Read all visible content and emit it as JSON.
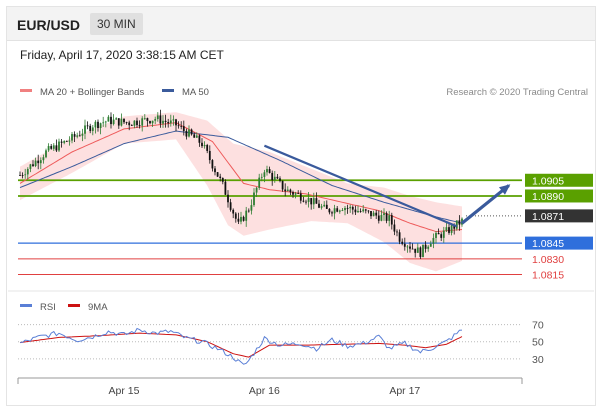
{
  "header": {
    "symbol": "EUR/USD",
    "timeframe": "30 MIN"
  },
  "timestamp": "Friday, April 17, 2020 3:38:15 AM CET",
  "colors": {
    "candle_up": "#2e7d32",
    "candle_down": "#111111",
    "ma20": "#ee5a5a",
    "bollinger_fill": "#fcd6d6",
    "ma50": "#3b5b9c",
    "resistance": "#5aa000",
    "pivot": "#2f6fdc",
    "support": "#e04040",
    "trend": "#3a5a9c",
    "rsi": "#5a7fd6",
    "rsi_ma": "#cc1111"
  },
  "chart_data": [
    {
      "type": "candlestick",
      "title": "EUR/USD",
      "legend": [
        {
          "name": "MA 20 + Bollinger Bands",
          "color": "#f08080"
        },
        {
          "name": "MA 50",
          "color": "#3b5b9c"
        }
      ],
      "legend_position": "top-left",
      "watermark": "Research © 2020 Trading Central",
      "x_tick_labels": [
        "Apr 15",
        "Apr 16",
        "Apr 17"
      ],
      "x_tick_index": [
        40,
        94,
        148
      ],
      "ylim": [
        1.0805,
        1.0995
      ],
      "last_price": 1.0871,
      "price_levels": [
        {
          "value": 1.0905,
          "label": "1.0905",
          "kind": "resistance"
        },
        {
          "value": 1.089,
          "label": "1.0890",
          "kind": "resistance"
        },
        {
          "value": 1.0871,
          "label": "1.0871",
          "kind": "last"
        },
        {
          "value": 1.0845,
          "label": "1.0845",
          "kind": "pivot"
        },
        {
          "value": 1.083,
          "label": "1.0830",
          "kind": "support"
        },
        {
          "value": 1.0815,
          "label": "1.0815",
          "kind": "support"
        }
      ],
      "trendline": {
        "from": {
          "index": 94,
          "price": 1.0938
        },
        "to": {
          "index": 168,
          "price": 1.0861
        }
      },
      "forecast_arrow": {
        "from": {
          "index": 170,
          "price": 1.0864
        },
        "to": {
          "index": 188,
          "price": 1.09
        }
      },
      "close_points": [
        [
          0,
          1.091
        ],
        [
          10,
          1.0932
        ],
        [
          20,
          1.0945
        ],
        [
          28,
          1.0958
        ],
        [
          34,
          1.0962
        ],
        [
          42,
          1.096
        ],
        [
          52,
          1.0964
        ],
        [
          60,
          1.0958
        ],
        [
          70,
          1.094
        ],
        [
          78,
          1.09
        ],
        [
          84,
          1.0862
        ],
        [
          88,
          1.0878
        ],
        [
          94,
          1.0916
        ],
        [
          102,
          1.0896
        ],
        [
          110,
          1.0888
        ],
        [
          118,
          1.0876
        ],
        [
          124,
          1.088
        ],
        [
          130,
          1.0876
        ],
        [
          136,
          1.0872
        ],
        [
          142,
          1.0868
        ],
        [
          146,
          1.085
        ],
        [
          150,
          1.0842
        ],
        [
          154,
          1.0836
        ],
        [
          158,
          1.0848
        ],
        [
          164,
          1.0856
        ],
        [
          170,
          1.0866
        ]
      ],
      "ma20_points": [
        [
          0,
          1.0902
        ],
        [
          20,
          1.0932
        ],
        [
          40,
          1.0954
        ],
        [
          60,
          1.096
        ],
        [
          74,
          1.0942
        ],
        [
          86,
          1.0902
        ],
        [
          96,
          1.0896
        ],
        [
          110,
          1.0892
        ],
        [
          124,
          1.0884
        ],
        [
          138,
          1.0876
        ],
        [
          150,
          1.0864
        ],
        [
          160,
          1.0856
        ],
        [
          170,
          1.0858
        ]
      ],
      "ma50_points": [
        [
          0,
          1.0898
        ],
        [
          20,
          1.0918
        ],
        [
          40,
          1.094
        ],
        [
          60,
          1.0952
        ],
        [
          80,
          1.0946
        ],
        [
          100,
          1.0924
        ],
        [
          120,
          1.09
        ],
        [
          140,
          1.0884
        ],
        [
          160,
          1.087
        ],
        [
          170,
          1.0864
        ]
      ],
      "bollinger_upper": [
        [
          0,
          1.0918
        ],
        [
          20,
          1.0946
        ],
        [
          40,
          1.0966
        ],
        [
          60,
          1.097
        ],
        [
          72,
          1.0962
        ],
        [
          82,
          1.094
        ],
        [
          96,
          1.0932
        ],
        [
          112,
          1.0916
        ],
        [
          126,
          1.0902
        ],
        [
          140,
          1.0898
        ],
        [
          150,
          1.089
        ],
        [
          160,
          1.0884
        ],
        [
          170,
          1.088
        ]
      ],
      "bollinger_lower": [
        [
          0,
          1.0886
        ],
        [
          20,
          1.0912
        ],
        [
          40,
          1.094
        ],
        [
          60,
          1.0944
        ],
        [
          72,
          1.09
        ],
        [
          80,
          1.0862
        ],
        [
          86,
          1.0852
        ],
        [
          96,
          1.0858
        ],
        [
          112,
          1.0866
        ],
        [
          126,
          1.0864
        ],
        [
          140,
          1.0846
        ],
        [
          150,
          1.0826
        ],
        [
          160,
          1.0818
        ],
        [
          170,
          1.0828
        ]
      ]
    },
    {
      "type": "line",
      "legend": [
        {
          "name": "RSI",
          "color": "#5a7fd6"
        },
        {
          "name": "9MA",
          "color": "#cc1111"
        }
      ],
      "legend_position": "top-left",
      "y_tick_labels": [
        "70",
        "50",
        "30"
      ],
      "y_ticks": [
        70,
        50,
        30
      ],
      "ylim": [
        10,
        80
      ],
      "rsi_points": [
        [
          0,
          48
        ],
        [
          8,
          56
        ],
        [
          15,
          60
        ],
        [
          22,
          52
        ],
        [
          28,
          56
        ],
        [
          34,
          62
        ],
        [
          40,
          58
        ],
        [
          46,
          64
        ],
        [
          52,
          60
        ],
        [
          58,
          62
        ],
        [
          64,
          54
        ],
        [
          70,
          50
        ],
        [
          76,
          42
        ],
        [
          82,
          32
        ],
        [
          86,
          22
        ],
        [
          88,
          28
        ],
        [
          94,
          54
        ],
        [
          100,
          46
        ],
        [
          108,
          48
        ],
        [
          114,
          42
        ],
        [
          120,
          52
        ],
        [
          126,
          45
        ],
        [
          132,
          48
        ],
        [
          138,
          56
        ],
        [
          142,
          42
        ],
        [
          148,
          48
        ],
        [
          154,
          38
        ],
        [
          158,
          42
        ],
        [
          164,
          50
        ],
        [
          170,
          64
        ]
      ],
      "rsi_ma_points": [
        [
          0,
          49
        ],
        [
          15,
          55
        ],
        [
          30,
          57
        ],
        [
          46,
          60
        ],
        [
          60,
          58
        ],
        [
          72,
          50
        ],
        [
          82,
          36
        ],
        [
          88,
          32
        ],
        [
          96,
          46
        ],
        [
          110,
          46
        ],
        [
          124,
          47
        ],
        [
          138,
          48
        ],
        [
          148,
          46
        ],
        [
          156,
          43
        ],
        [
          164,
          47
        ],
        [
          170,
          56
        ]
      ]
    }
  ]
}
